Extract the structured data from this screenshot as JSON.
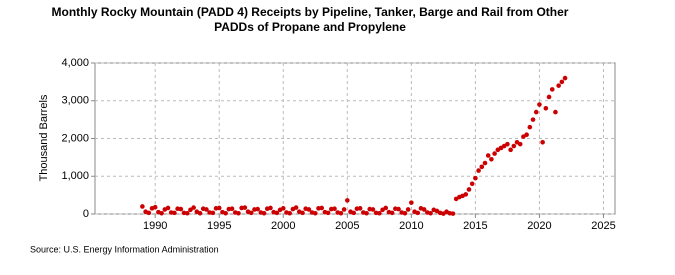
{
  "chart_data": {
    "type": "scatter",
    "title": "Monthly Rocky Mountain (PADD 4) Receipts by Pipeline, Tanker, Barge and Rail from Other PADDs of Propane and Propylene",
    "y_label": "Thousand Barrels",
    "source": "Source: U.S. Energy Information Administration",
    "color": "#cc0000",
    "grid": true,
    "xlim": [
      1985.3,
      2025.9
    ],
    "xticks": [
      1990,
      1995,
      2000,
      2005,
      2010,
      2015,
      2020,
      2025
    ],
    "ylim": [
      0,
      4000
    ],
    "yticks": [
      0,
      {
        "value": 1000,
        "label": "1,000"
      },
      {
        "value": 2000,
        "label": "2,000"
      },
      {
        "value": 3000,
        "label": "3,000"
      },
      {
        "value": 4000,
        "label": "4,000"
      }
    ],
    "x": [
      1989,
      1989.25,
      1989.5,
      1989.75,
      1990,
      1990.25,
      1990.5,
      1990.75,
      1991,
      1991.25,
      1991.5,
      1991.75,
      1992,
      1992.25,
      1992.5,
      1992.75,
      1993,
      1993.25,
      1993.5,
      1993.75,
      1994,
      1994.25,
      1994.5,
      1994.75,
      1995,
      1995.25,
      1995.5,
      1995.75,
      1996,
      1996.25,
      1996.5,
      1996.75,
      1997,
      1997.25,
      1997.5,
      1997.75,
      1998,
      1998.25,
      1998.5,
      1998.75,
      1999,
      1999.25,
      1999.5,
      1999.75,
      2000,
      2000.25,
      2000.5,
      2000.75,
      2001,
      2001.25,
      2001.5,
      2001.75,
      2002,
      2002.25,
      2002.5,
      2002.75,
      2003,
      2003.25,
      2003.5,
      2003.75,
      2004,
      2004.25,
      2004.5,
      2004.75,
      2005,
      2005.25,
      2005.5,
      2005.75,
      2006,
      2006.25,
      2006.5,
      2006.75,
      2007,
      2007.25,
      2007.5,
      2007.75,
      2008,
      2008.25,
      2008.5,
      2008.75,
      2009,
      2009.25,
      2009.5,
      2009.75,
      2010,
      2010.25,
      2010.5,
      2010.75,
      2011,
      2011.25,
      2011.5,
      2011.75,
      2012,
      2012.25,
      2012.5,
      2012.75,
      2013,
      2013.25,
      2013.5,
      2013.75,
      2014,
      2014.25,
      2014.5,
      2014.75,
      2015,
      2015.25,
      2015.5,
      2015.75,
      2016,
      2016.25,
      2016.5,
      2016.75,
      2017,
      2017.25,
      2017.5,
      2017.75,
      2018,
      2018.25,
      2018.5,
      2018.75,
      2019,
      2019.25,
      2019.5,
      2019.75,
      2020,
      2020.25,
      2020.5,
      2020.75,
      2021,
      2021.25,
      2021.5,
      2021.75,
      2022
    ],
    "values": [
      200,
      60,
      30,
      150,
      180,
      50,
      20,
      120,
      160,
      40,
      30,
      140,
      130,
      30,
      20,
      110,
      170,
      60,
      20,
      140,
      120,
      40,
      30,
      150,
      160,
      50,
      20,
      130,
      140,
      40,
      20,
      160,
      170,
      60,
      30,
      120,
      130,
      40,
      20,
      140,
      160,
      50,
      30,
      110,
      150,
      40,
      20,
      130,
      170,
      60,
      30,
      140,
      120,
      40,
      20,
      150,
      160,
      50,
      30,
      130,
      140,
      40,
      20,
      120,
      360,
      60,
      30,
      140,
      150,
      40,
      20,
      130,
      120,
      30,
      20,
      110,
      160,
      50,
      30,
      140,
      130,
      40,
      20,
      120,
      300,
      60,
      30,
      150,
      120,
      40,
      20,
      110,
      80,
      30,
      10,
      60,
      20,
      10,
      400,
      450,
      480,
      520,
      650,
      800,
      950,
      1150,
      1250,
      1350,
      1550,
      1450,
      1600,
      1700,
      1750,
      1800,
      1850,
      1700,
      1800,
      1900,
      1850,
      2050,
      2100,
      2300,
      2500,
      2700,
      2900,
      1900,
      2800,
      3100,
      3300,
      2700,
      3400,
      3500,
      3600
    ]
  }
}
